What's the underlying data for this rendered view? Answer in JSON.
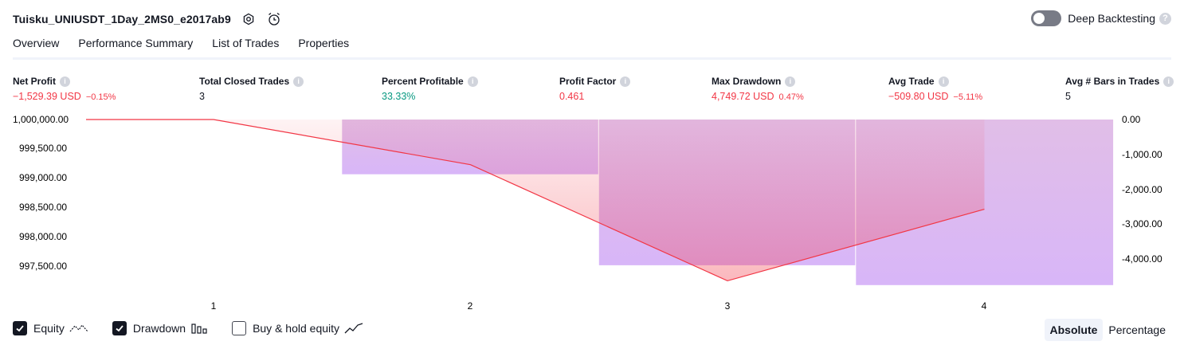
{
  "header": {
    "title": "Tuisku_UNIUSDT_1Day_2MS0_e2017ab9",
    "deep_backtesting_label": "Deep Backtesting",
    "help_glyph": "?"
  },
  "tabs": [
    {
      "label": "Overview",
      "active": true
    },
    {
      "label": "Performance Summary",
      "active": false
    },
    {
      "label": "List of Trades",
      "active": false
    },
    {
      "label": "Properties",
      "active": false
    }
  ],
  "metrics": [
    {
      "label": "Net Profit",
      "value": "−1,529.39 USD",
      "sub": "−0.15%",
      "color": "red"
    },
    {
      "label": "Total Closed Trades",
      "value": "3",
      "sub": "",
      "color": "dark"
    },
    {
      "label": "Percent Profitable",
      "value": "33.33%",
      "sub": "",
      "color": "green"
    },
    {
      "label": "Profit Factor",
      "value": "0.461",
      "sub": "",
      "color": "red"
    },
    {
      "label": "Max Drawdown",
      "value": "4,749.72 USD",
      "sub": "0.47%",
      "color": "red"
    },
    {
      "label": "Avg Trade",
      "value": "−509.80 USD",
      "sub": "−5.11%",
      "color": "red"
    },
    {
      "label": "Avg # Bars in Trades",
      "value": "5",
      "sub": "",
      "color": "dark"
    }
  ],
  "info_glyph": "i",
  "chart_data": {
    "type": "line",
    "x": [
      1,
      2,
      3,
      4
    ],
    "x_tick_labels": [
      "1",
      "2",
      "3",
      "4"
    ],
    "series": [
      {
        "name": "Equity",
        "type": "line",
        "axis": "left",
        "color": "#f23645",
        "x": [
          0.0,
          1,
          2,
          3,
          4
        ],
        "values": [
          1000000.0,
          1000000.0,
          999230.0,
          997250.0,
          998470.61
        ]
      },
      {
        "name": "Drawdown",
        "type": "bar",
        "axis": "right",
        "color": "#ce93d8",
        "x": [
          2,
          3,
          4
        ],
        "values": [
          -1570,
          -4180,
          -4749.72
        ]
      }
    ],
    "y_left": {
      "ticks": [
        "1,000,000.00",
        "999,500.00",
        "999,000.00",
        "998,500.00",
        "998,000.00",
        "997,500.00"
      ],
      "tick_values": [
        1000000,
        999500,
        999000,
        998500,
        998000,
        997500
      ]
    },
    "y_right": {
      "ticks": [
        "0.00",
        "-1,000.00",
        "-2,000.00",
        "-3,000.00",
        "-4,000.00"
      ],
      "tick_values": [
        0,
        -1000,
        -2000,
        -3000,
        -4000
      ]
    }
  },
  "legend": [
    {
      "label": "Equity",
      "checked": true
    },
    {
      "label": "Drawdown",
      "checked": true
    },
    {
      "label": "Buy & hold equity",
      "checked": false
    }
  ],
  "modes": [
    {
      "label": "Absolute",
      "active": true
    },
    {
      "label": "Percentage",
      "active": false
    }
  ]
}
